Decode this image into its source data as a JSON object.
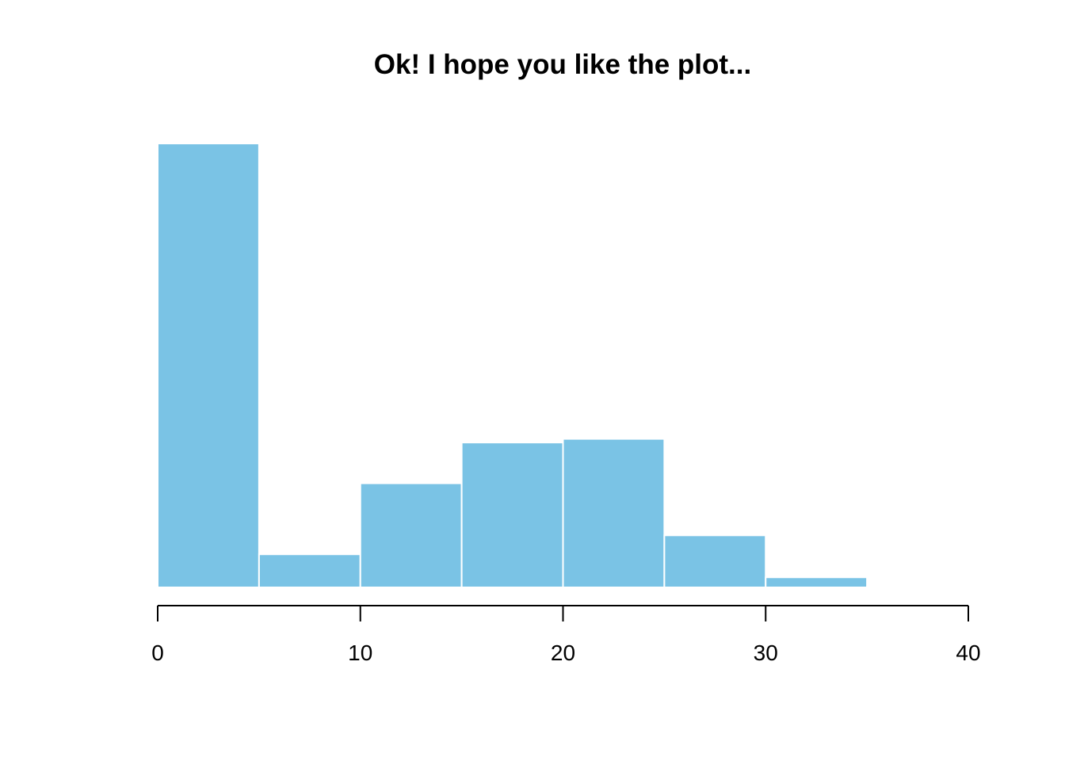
{
  "chart_data": {
    "type": "bar",
    "title": "Ok! I hope you like the plot...",
    "xlabel": "",
    "ylabel": "",
    "bins": [
      [
        0,
        5
      ],
      [
        5,
        10
      ],
      [
        10,
        15
      ],
      [
        15,
        20
      ],
      [
        20,
        25
      ],
      [
        25,
        30
      ],
      [
        30,
        35
      ],
      [
        35,
        40
      ]
    ],
    "values": [
      110,
      8.2,
      25.8,
      35.9,
      36.8,
      12.9,
      2.5,
      0.15
    ],
    "xlim": [
      0,
      40
    ],
    "ylim": [
      0,
      110
    ],
    "x_ticks": [
      0,
      10,
      20,
      30,
      40
    ],
    "x_tick_labels": [
      "0",
      "10",
      "20",
      "30",
      "40"
    ],
    "y_axis_shown": false,
    "grid": false,
    "legend": "none",
    "bar_color": "#7AC3E5",
    "bar_edge_color": "#FFFFFF",
    "axis_color": "#000000"
  }
}
